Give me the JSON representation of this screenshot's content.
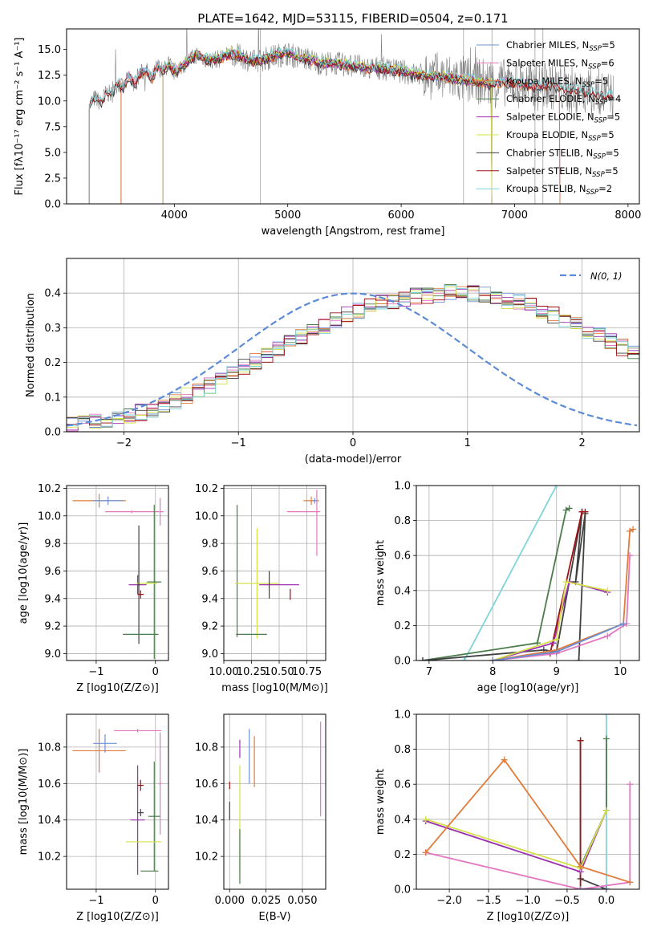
{
  "figure": {
    "title": "PLATE=1642, MJD=53115, FIBERID=0504, z=0.171"
  },
  "chart_data": [
    {
      "id": "spectrum",
      "type": "line",
      "xlabel": "wavelength [Angstrom, rest frame]",
      "ylabel": "Flux [fλ10⁻¹⁷ erg cm⁻² s⁻¹ A⁻¹]",
      "xlim": [
        3050,
        8100
      ],
      "ylim": [
        0,
        17
      ],
      "xticks": [
        4000,
        5000,
        6000,
        7000,
        8000
      ],
      "yticks": [
        0.0,
        2.5,
        5.0,
        7.5,
        10.0,
        12.5,
        15.0
      ],
      "legend_position": "top-right",
      "observed": {
        "color": "#808080",
        "x": [
          3250,
          3300,
          3350,
          3400,
          3450,
          3500,
          3550,
          3600,
          3650,
          3700,
          3750,
          3800,
          3850,
          3900,
          3950,
          4000,
          4100,
          4200,
          4300,
          4400,
          4500,
          4600,
          4700,
          4800,
          4900,
          5000,
          5100,
          5200,
          5300,
          5400,
          5500,
          5600,
          5700,
          5800,
          5900,
          6000,
          6100,
          6200,
          6300,
          6400,
          6500,
          6600,
          6700,
          6800,
          6900,
          7000,
          7100,
          7200,
          7300,
          7400,
          7500,
          7600,
          7700,
          7800,
          7870
        ],
        "y": [
          9.6,
          10.3,
          9.8,
          10.8,
          10.6,
          11.8,
          11.2,
          12.4,
          11.6,
          12.6,
          13.1,
          12.0,
          13.4,
          12.9,
          13.6,
          12.8,
          13.7,
          14.5,
          13.9,
          14.1,
          14.6,
          14.3,
          13.8,
          14.1,
          14.4,
          14.6,
          14.2,
          14.0,
          13.6,
          13.7,
          13.5,
          13.4,
          13.1,
          13.2,
          13.0,
          12.9,
          12.6,
          12.5,
          12.4,
          12.3,
          12.1,
          12.0,
          11.9,
          11.6,
          11.8,
          11.7,
          11.5,
          11.3,
          11.6,
          11.2,
          11.0,
          10.9,
          10.7,
          10.6,
          10.5
        ]
      },
      "models": [
        {
          "name": "Chabrier MILES, N$_{SSP}$=5",
          "label_main": "Chabrier MILES, N",
          "label_sub": "SSP",
          "label_end": "=5",
          "color": "#6b8fd6",
          "offset": 0.0,
          "start": 3530,
          "end": 7400
        },
        {
          "name": "Salpeter MILES, N$_{SSP}$=6",
          "label_main": "Salpeter MILES, N",
          "label_sub": "SSP",
          "label_end": "=6",
          "color": "#e377c2",
          "offset": 0.1,
          "start": 3530,
          "end": 7400
        },
        {
          "name": "Kroupa MILES, N$_{SSP}$=5",
          "label_main": "Kroupa MILES, N",
          "label_sub": "SSP",
          "label_end": "=5",
          "color": "#e07b39",
          "offset": -0.1,
          "start": 3530,
          "end": 7400
        },
        {
          "name": "Chabrier ELODIE, N$_{SSP}$=4",
          "label_main": "Chabrier ELODIE, N",
          "label_sub": "SSP",
          "label_end": "=4",
          "color": "#4a7c4a",
          "offset": 0.05,
          "start": 3900,
          "end": 6800
        },
        {
          "name": "Salpeter ELODIE, N$_{SSP}$=5",
          "label_main": "Salpeter ELODIE, N",
          "label_sub": "SSP",
          "label_end": "=5",
          "color": "#9b30b0",
          "offset": -0.05,
          "start": 3900,
          "end": 6800
        },
        {
          "name": "Kroupa ELODIE, N$_{SSP}$=5",
          "label_main": "Kroupa ELODIE, N",
          "label_sub": "SSP",
          "label_end": "=5",
          "color": "#d4e04a",
          "offset": 0.15,
          "start": 3900,
          "end": 6800
        },
        {
          "name": "Chabrier STELIB, N$_{SSP}$=5",
          "label_main": "Chabrier STELIB, N",
          "label_sub": "SSP",
          "label_end": "=5",
          "color": "#404040",
          "offset": -0.15,
          "start": 3250,
          "end": 7870
        },
        {
          "name": "Salpeter STELIB, N$_{SSP}$=5",
          "label_main": "Salpeter STELIB, N",
          "label_sub": "SSP",
          "label_end": "=5",
          "color": "#a01010",
          "offset": 0.0,
          "start": 3250,
          "end": 7870
        },
        {
          "name": "Kroupa STELIB, N$_{SSP}$=2",
          "label_main": "Kroupa STELIB, N",
          "label_sub": "SSP",
          "label_end": "=2",
          "color": "#7fd4d8",
          "offset": 0.25,
          "start": 3250,
          "end": 7870
        }
      ]
    },
    {
      "id": "residuals",
      "type": "line",
      "xlabel": "(data-model)/error",
      "ylabel": "Normed distribution",
      "xlim": [
        -2.5,
        2.5
      ],
      "ylim": [
        0,
        0.5
      ],
      "xticks": [
        -2,
        -1,
        0,
        1,
        2
      ],
      "yticks": [
        0.0,
        0.1,
        0.2,
        0.3,
        0.4
      ],
      "legend_position": "top-right",
      "reference": {
        "name": "N(0,1)",
        "label_text": "N(0, 1)",
        "color": "#5b8bd9",
        "style": "dashed"
      },
      "bin_width": 0.1,
      "bin_start": -2.5,
      "base_density": [
        0.018,
        0.022,
        0.028,
        0.032,
        0.04,
        0.048,
        0.056,
        0.066,
        0.078,
        0.09,
        0.104,
        0.118,
        0.134,
        0.15,
        0.168,
        0.186,
        0.204,
        0.222,
        0.24,
        0.258,
        0.276,
        0.292,
        0.308,
        0.322,
        0.336,
        0.348,
        0.36,
        0.37,
        0.378,
        0.384,
        0.39,
        0.395,
        0.398,
        0.4,
        0.4,
        0.398,
        0.394,
        0.388,
        0.38,
        0.372,
        0.362,
        0.35,
        0.338,
        0.324,
        0.31,
        0.294,
        0.278,
        0.262,
        0.244,
        0.226
      ],
      "step_colors": [
        "#6b8fd6",
        "#e377c2",
        "#e07b39",
        "#4a7c4a",
        "#9b30b0",
        "#d4e04a",
        "#404040",
        "#a01010",
        "#7fd4d8"
      ]
    },
    {
      "id": "age-metallicity",
      "type": "scatter",
      "xlabel": "Z [log10(Z/Z⊙)]",
      "ylabel": "age  [log10(age/yr)]",
      "xlim": [
        -1.5,
        0.22
      ],
      "ylim": [
        8.95,
        10.22
      ],
      "xticks": [
        -1,
        0
      ],
      "yticks": [
        9.0,
        9.2,
        9.4,
        9.6,
        9.8,
        10.0,
        10.2
      ],
      "points": [
        {
          "x": -0.95,
          "y": 10.11,
          "xerr": 0.45,
          "yerr": 0.05,
          "color": "#e07b39"
        },
        {
          "x": -0.8,
          "y": 10.11,
          "xerr": 0.25,
          "yerr": 0.03,
          "color": "#6b8fd6"
        },
        {
          "x": -0.4,
          "y": 10.03,
          "xerr": 0.45,
          "yerr": 0.01,
          "color": "#e377c2"
        },
        {
          "x": 0.08,
          "y": 10.03,
          "xerr": 0.06,
          "yerr": 0.1,
          "color": "#e377c2"
        },
        {
          "x": -0.02,
          "y": 9.52,
          "xerr": 0.12,
          "yerr": 0.56,
          "color": "#4a7c4a"
        },
        {
          "x": -0.3,
          "y": 9.5,
          "xerr": 0.15,
          "yerr": 0.07,
          "color": "#9b30b0"
        },
        {
          "x": -0.15,
          "y": 9.51,
          "xerr": 0.18,
          "yerr": 0.01,
          "color": "#d4e04a"
        },
        {
          "x": -0.28,
          "y": 9.5,
          "xerr": 0.02,
          "yerr": 0.43,
          "color": "#404040"
        },
        {
          "x": -0.25,
          "y": 9.43,
          "xerr": 0.05,
          "yerr": 0.03,
          "color": "#a01010"
        },
        {
          "x": -0.25,
          "y": 9.14,
          "xerr": 0.3,
          "yerr": 0.0,
          "color": "#4a7c4a"
        }
      ]
    },
    {
      "id": "age-mass",
      "type": "scatter",
      "xlabel": "mass [log10(M/M⊙)]",
      "ylabel": "",
      "xlim": [
        10.0,
        10.92
      ],
      "ylim": [
        8.95,
        10.22
      ],
      "xticks": [
        10.0,
        10.25,
        10.5,
        10.75
      ],
      "yticks": [
        9.0,
        9.2,
        9.4,
        9.6,
        9.8,
        10.0,
        10.2
      ],
      "points": [
        {
          "x": 10.79,
          "y": 10.11,
          "xerr": 0.07,
          "yerr": 0.03,
          "color": "#e07b39"
        },
        {
          "x": 10.82,
          "y": 10.11,
          "xerr": 0.02,
          "yerr": 0.02,
          "color": "#6b8fd6"
        },
        {
          "x": 10.72,
          "y": 10.03,
          "xerr": 0.15,
          "yerr": 0.0,
          "color": "#e377c2"
        },
        {
          "x": 10.84,
          "y": 9.95,
          "xerr": 0.0,
          "yerr": 0.24,
          "color": "#e377c2"
        },
        {
          "x": 10.12,
          "y": 9.6,
          "xerr": 0.0,
          "yerr": 0.48,
          "color": "#4a7c4a"
        },
        {
          "x": 10.3,
          "y": 9.51,
          "xerr": 0.2,
          "yerr": 0.4,
          "color": "#d4e04a"
        },
        {
          "x": 10.5,
          "y": 9.5,
          "xerr": 0.18,
          "yerr": 0.0,
          "color": "#9b30b0"
        },
        {
          "x": 10.41,
          "y": 9.5,
          "xerr": 0.0,
          "yerr": 0.1,
          "color": "#404040"
        },
        {
          "x": 10.6,
          "y": 9.43,
          "xerr": 0.0,
          "yerr": 0.04,
          "color": "#a01010"
        },
        {
          "x": 10.25,
          "y": 9.14,
          "xerr": 0.14,
          "yerr": 0.0,
          "color": "#4a7c4a"
        }
      ]
    },
    {
      "id": "weight-age",
      "type": "line",
      "xlabel": "age  [log10(age/yr)]",
      "ylabel": "mass weight",
      "xlim": [
        6.8,
        10.3
      ],
      "ylim": [
        0,
        1.0
      ],
      "xticks": [
        7,
        8,
        9,
        10
      ],
      "yticks": [
        0.0,
        0.2,
        0.4,
        0.6,
        0.8,
        1.0
      ],
      "series": [
        {
          "color": "#7fd4d8",
          "x": [
            7.55,
            9.0
          ],
          "y": [
            0.0,
            1.0
          ]
        },
        {
          "color": "#4a7c4a",
          "x": [
            6.9,
            8.7,
            9.15,
            9.2
          ],
          "y": [
            0.0,
            0.1,
            0.86,
            0.87
          ]
        },
        {
          "color": "#404040",
          "x": [
            6.9,
            8.8,
            9.0,
            9.4,
            9.3,
            9.45,
            9.35
          ],
          "y": [
            0.0,
            0.06,
            0.05,
            0.85,
            0.45,
            0.84,
            0.0
          ]
        },
        {
          "color": "#a01010",
          "x": [
            8.0,
            8.9,
            9.4,
            9.45
          ],
          "y": [
            0.0,
            0.04,
            0.85,
            0.85
          ]
        },
        {
          "color": "#9b30b0",
          "x": [
            8.0,
            8.95,
            9.2,
            9.8
          ],
          "y": [
            0.0,
            0.1,
            0.45,
            0.39
          ]
        },
        {
          "color": "#d4e04a",
          "x": [
            8.0,
            9.0,
            9.15,
            9.8
          ],
          "y": [
            0.0,
            0.12,
            0.45,
            0.4
          ]
        },
        {
          "color": "#e377c2",
          "x": [
            8.0,
            9.0,
            9.8,
            10.1,
            10.15
          ],
          "y": [
            0.0,
            0.04,
            0.14,
            0.21,
            0.6
          ]
        },
        {
          "color": "#e07b39",
          "x": [
            8.0,
            9.0,
            10.05,
            10.15,
            10.2
          ],
          "y": [
            0.0,
            0.06,
            0.21,
            0.74,
            0.75
          ]
        },
        {
          "color": "#6b8fd6",
          "x": [
            8.0,
            9.0,
            10.05
          ],
          "y": [
            0.0,
            0.05,
            0.21
          ]
        }
      ]
    },
    {
      "id": "mass-metallicity",
      "type": "scatter",
      "xlabel": "Z [log10(Z/Z⊙)]",
      "ylabel": "mass [log10(M/M⊙)]",
      "xlim": [
        -1.5,
        0.22
      ],
      "ylim": [
        10.02,
        10.98
      ],
      "xticks": [
        -1,
        0
      ],
      "yticks": [
        10.2,
        10.4,
        10.6,
        10.8
      ],
      "points": [
        {
          "x": -0.95,
          "y": 10.78,
          "xerr": 0.45,
          "yerr": 0.12,
          "color": "#e07b39"
        },
        {
          "x": -0.85,
          "y": 10.82,
          "xerr": 0.2,
          "yerr": 0.05,
          "color": "#6b8fd6"
        },
        {
          "x": -0.3,
          "y": 10.89,
          "xerr": 0.4,
          "yerr": 0.01,
          "color": "#e377c2"
        },
        {
          "x": 0.08,
          "y": 10.6,
          "xerr": 0.02,
          "yerr": 0.28,
          "color": "#e377c2"
        },
        {
          "x": -0.02,
          "y": 10.42,
          "xerr": 0.1,
          "yerr": 0.3,
          "color": "#4a7c4a"
        },
        {
          "x": -0.3,
          "y": 10.4,
          "xerr": 0.12,
          "yerr": 0.3,
          "color": "#9b30b0"
        },
        {
          "x": -0.2,
          "y": 10.28,
          "xerr": 0.3,
          "yerr": 0.0,
          "color": "#d4e04a"
        },
        {
          "x": -0.25,
          "y": 10.44,
          "xerr": 0.05,
          "yerr": 0.02,
          "color": "#404040"
        },
        {
          "x": -0.25,
          "y": 10.59,
          "xerr": 0.05,
          "yerr": 0.03,
          "color": "#a01010"
        },
        {
          "x": -0.1,
          "y": 10.12,
          "xerr": 0.15,
          "yerr": 0.0,
          "color": "#4a7c4a"
        }
      ]
    },
    {
      "id": "mass-extinction",
      "type": "scatter",
      "xlabel": "E(B-V)",
      "ylabel": "",
      "xlim": [
        -0.004,
        0.066
      ],
      "ylim": [
        10.02,
        10.98
      ],
      "xticks": [
        0.0,
        0.025,
        0.05
      ],
      "yticks": [
        10.2,
        10.4,
        10.6,
        10.8
      ],
      "points": [
        {
          "x": 0.0,
          "y": 10.45,
          "xerr": 0.0,
          "yerr": 0.05,
          "color": "#404040"
        },
        {
          "x": 0.0,
          "y": 10.59,
          "xerr": 0.0,
          "yerr": 0.02,
          "color": "#a01010"
        },
        {
          "x": 0.007,
          "y": 10.79,
          "xerr": 0.0,
          "yerr": 0.05,
          "color": "#9b30b0"
        },
        {
          "x": 0.007,
          "y": 10.4,
          "xerr": 0.0,
          "yerr": 0.3,
          "color": "#d4e04a"
        },
        {
          "x": 0.007,
          "y": 10.2,
          "xerr": 0.0,
          "yerr": 0.15,
          "color": "#4a7c4a"
        },
        {
          "x": 0.0135,
          "y": 10.75,
          "xerr": 0.0,
          "yerr": 0.15,
          "color": "#6b8fd6"
        },
        {
          "x": 0.017,
          "y": 10.72,
          "xerr": 0.0,
          "yerr": 0.14,
          "color": "#e07b39"
        },
        {
          "x": 0.0625,
          "y": 10.68,
          "xerr": 0.0,
          "yerr": 0.26,
          "color": "#e377c2"
        }
      ]
    },
    {
      "id": "weight-metallicity",
      "type": "line",
      "xlabel": "Z [log10(Z/Z⊙)]",
      "ylabel": "mass weight",
      "xlim": [
        -2.42,
        0.42
      ],
      "ylim": [
        0,
        1.0
      ],
      "xticks": [
        -2.0,
        -1.5,
        -1.0,
        -0.5,
        0.0
      ],
      "yticks": [
        0.0,
        0.2,
        0.4,
        0.6,
        0.8,
        1.0
      ],
      "series": [
        {
          "color": "#7fd4d8",
          "x": [
            0.0,
            0.0
          ],
          "y": [
            0.0,
            1.0
          ]
        },
        {
          "color": "#4a7c4a",
          "x": [
            -0.33,
            0.0,
            0.0
          ],
          "y": [
            0.13,
            0.45,
            0.86
          ]
        },
        {
          "color": "#404040",
          "x": [
            -0.33,
            -0.33,
            0.0
          ],
          "y": [
            0.85,
            0.06,
            0.0
          ]
        },
        {
          "color": "#a01010",
          "x": [
            -0.33,
            -0.33,
            0.0
          ],
          "y": [
            0.85,
            0.0,
            0.0
          ]
        },
        {
          "color": "#9b30b0",
          "x": [
            -2.3,
            -0.33,
            0.0
          ],
          "y": [
            0.39,
            0.1,
            0.45
          ]
        },
        {
          "color": "#d4e04a",
          "x": [
            -2.3,
            -0.33,
            0.0
          ],
          "y": [
            0.4,
            0.12,
            0.45
          ]
        },
        {
          "color": "#e377c2",
          "x": [
            -2.3,
            -0.33,
            0.3,
            0.3
          ],
          "y": [
            0.21,
            0.0,
            0.04,
            0.6
          ]
        },
        {
          "color": "#e07b39",
          "x": [
            -2.3,
            -1.3,
            -0.33,
            0.3
          ],
          "y": [
            0.21,
            0.74,
            0.13,
            0.04
          ]
        },
        {
          "color": "#6b8fd6",
          "x": [
            -0.33,
            0.0
          ],
          "y": [
            0.0,
            0.0
          ]
        }
      ]
    }
  ]
}
